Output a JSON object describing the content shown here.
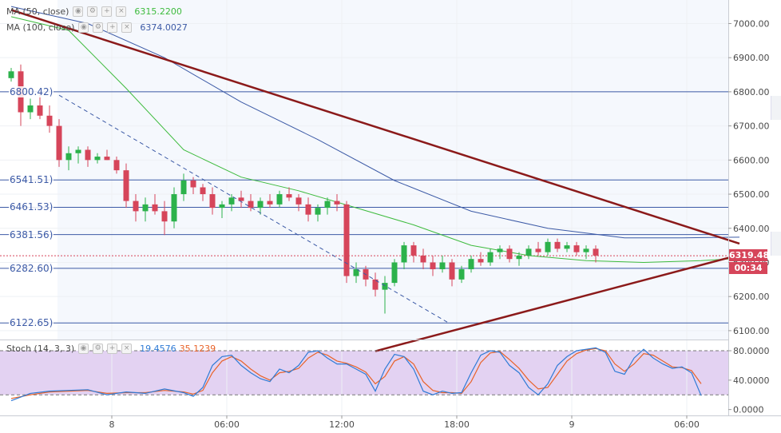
{
  "legends": [
    {
      "label": "MA (50, close)",
      "value": "6315.2200",
      "color": "#3dbb3d"
    },
    {
      "label": "MA (100, close)",
      "value": "6374.0027",
      "color": "#3c5aa6"
    }
  ],
  "stoch_legend": {
    "label": "Stoch (14, 3, 3)",
    "k": "19.4576",
    "d": "35.1239",
    "k_color": "#2f7bd6",
    "d_color": "#e8632a"
  },
  "level_labels": [
    {
      "text": "6800.42)",
      "price": 6800
    },
    {
      "text": "6541.51)",
      "price": 6541.51
    },
    {
      "text": "6461.53)",
      "price": 6461.53
    },
    {
      "text": "6381.56)",
      "price": 6381.56
    },
    {
      "text": "6282.60)",
      "price": 6282.6
    },
    {
      "text": "6122.65)",
      "price": 6122.65
    }
  ],
  "price_tag": {
    "value": "6319.48",
    "price": 6319.48,
    "countdown": "00:34",
    "color": "#d6455a"
  },
  "colors": {
    "up": "#2cb24b",
    "down": "#d6455a",
    "trend": "#8b1a1a",
    "ma50": "#3dbb3d",
    "ma100": "#3c5aa6",
    "level": "#3c5aa6",
    "stoch_bg": "#e3d2f2"
  },
  "chart_data": {
    "type": "candlestick",
    "y_axis": {
      "ticks": [
        7000,
        6900,
        6800,
        6700,
        6600,
        6500,
        6400,
        6300,
        6200,
        6100
      ],
      "labels": [
        "7000.00",
        "6900.00",
        "6800.00",
        "6700.00",
        "6600.00",
        "6500.00",
        "6400.00",
        "6300.00",
        "6200.00",
        "6100.00"
      ],
      "range": [
        6074,
        7069
      ]
    },
    "x_axis": {
      "labels": [
        "8",
        "06:00",
        "12:00",
        "18:00",
        "9",
        "06:00"
      ],
      "positions": [
        10.5,
        22.5,
        34.5,
        46.5,
        58.5,
        70.5
      ]
    },
    "levels": [
      6800,
      6541.51,
      6461.53,
      6381.56,
      6282.6,
      6122.65
    ],
    "trendlines": [
      {
        "name": "resistance",
        "from": [
          0,
          7040
        ],
        "to": [
          76,
          6355
        ],
        "style": "solid"
      },
      {
        "name": "support",
        "from": [
          38,
          6040
        ],
        "to": [
          76,
          6322
        ],
        "style": "solid"
      },
      {
        "name": "projection",
        "from": [
          5,
          6790
        ],
        "to": [
          45.5,
          6125
        ],
        "style": "dashed"
      }
    ],
    "candles": [
      [
        6840,
        6870,
        6830,
        6860
      ],
      [
        6860,
        6880,
        6700,
        6740
      ],
      [
        6740,
        6780,
        6720,
        6760
      ],
      [
        6760,
        6800,
        6720,
        6730
      ],
      [
        6730,
        6760,
        6680,
        6700
      ],
      [
        6700,
        6720,
        6580,
        6600
      ],
      [
        6600,
        6640,
        6570,
        6620
      ],
      [
        6620,
        6640,
        6590,
        6630
      ],
      [
        6630,
        6640,
        6580,
        6600
      ],
      [
        6600,
        6620,
        6590,
        6610
      ],
      [
        6610,
        6630,
        6600,
        6600
      ],
      [
        6600,
        6610,
        6560,
        6570
      ],
      [
        6570,
        6590,
        6460,
        6480
      ],
      [
        6480,
        6500,
        6420,
        6450
      ],
      [
        6450,
        6490,
        6420,
        6470
      ],
      [
        6470,
        6500,
        6440,
        6450
      ],
      [
        6450,
        6480,
        6380,
        6420
      ],
      [
        6420,
        6520,
        6400,
        6500
      ],
      [
        6500,
        6560,
        6480,
        6540
      ],
      [
        6540,
        6550,
        6500,
        6520
      ],
      [
        6520,
        6530,
        6480,
        6500
      ],
      [
        6500,
        6520,
        6440,
        6460
      ],
      [
        6460,
        6480,
        6430,
        6470
      ],
      [
        6470,
        6500,
        6450,
        6490
      ],
      [
        6490,
        6510,
        6460,
        6480
      ],
      [
        6480,
        6500,
        6450,
        6460
      ],
      [
        6460,
        6490,
        6440,
        6480
      ],
      [
        6480,
        6500,
        6460,
        6470
      ],
      [
        6470,
        6510,
        6460,
        6500
      ],
      [
        6500,
        6520,
        6480,
        6490
      ],
      [
        6490,
        6500,
        6450,
        6470
      ],
      [
        6470,
        6490,
        6420,
        6440
      ],
      [
        6440,
        6470,
        6420,
        6460
      ],
      [
        6460,
        6490,
        6440,
        6480
      ],
      [
        6480,
        6500,
        6450,
        6470
      ],
      [
        6470,
        6480,
        6240,
        6260
      ],
      [
        6260,
        6300,
        6240,
        6280
      ],
      [
        6280,
        6290,
        6230,
        6250
      ],
      [
        6250,
        6270,
        6200,
        6220
      ],
      [
        6220,
        6260,
        6150,
        6240
      ],
      [
        6240,
        6310,
        6230,
        6300
      ],
      [
        6300,
        6360,
        6280,
        6350
      ],
      [
        6350,
        6360,
        6300,
        6320
      ],
      [
        6320,
        6340,
        6280,
        6300
      ],
      [
        6300,
        6320,
        6260,
        6280
      ],
      [
        6280,
        6320,
        6270,
        6300
      ],
      [
        6300,
        6310,
        6230,
        6250
      ],
      [
        6250,
        6290,
        6240,
        6280
      ],
      [
        6280,
        6320,
        6270,
        6310
      ],
      [
        6310,
        6330,
        6290,
        6300
      ],
      [
        6300,
        6340,
        6290,
        6330
      ],
      [
        6330,
        6350,
        6310,
        6340
      ],
      [
        6340,
        6350,
        6300,
        6310
      ],
      [
        6310,
        6330,
        6290,
        6320
      ],
      [
        6320,
        6350,
        6310,
        6340
      ],
      [
        6340,
        6360,
        6320,
        6330
      ],
      [
        6330,
        6370,
        6320,
        6360
      ],
      [
        6360,
        6370,
        6330,
        6340
      ],
      [
        6340,
        6360,
        6330,
        6350
      ],
      [
        6350,
        6360,
        6320,
        6330
      ],
      [
        6330,
        6350,
        6310,
        6340
      ],
      [
        6340,
        6350,
        6300,
        6320
      ]
    ],
    "ma50": [
      [
        0,
        7020
      ],
      [
        6,
        6980
      ],
      [
        12,
        6810
      ],
      [
        18,
        6630
      ],
      [
        24,
        6550
      ],
      [
        30,
        6510
      ],
      [
        36,
        6460
      ],
      [
        42,
        6410
      ],
      [
        48,
        6350
      ],
      [
        54,
        6320
      ],
      [
        60,
        6305
      ],
      [
        66,
        6300
      ],
      [
        72,
        6305
      ],
      [
        76,
        6312
      ]
    ],
    "ma100": [
      [
        0,
        7050
      ],
      [
        8,
        7000
      ],
      [
        16,
        6900
      ],
      [
        24,
        6770
      ],
      [
        32,
        6660
      ],
      [
        40,
        6540
      ],
      [
        48,
        6450
      ],
      [
        56,
        6400
      ],
      [
        64,
        6372
      ],
      [
        70,
        6372
      ],
      [
        76,
        6374
      ]
    ],
    "stoch": {
      "ticks": [
        80,
        40,
        0
      ],
      "labels": [
        "80.0000",
        "40.0000",
        "0.0000"
      ],
      "range": [
        -8,
        92
      ],
      "bands": [
        80,
        20
      ],
      "k": [
        [
          0,
          12
        ],
        [
          2,
          22
        ],
        [
          4,
          25
        ],
        [
          6,
          26
        ],
        [
          8,
          27
        ],
        [
          10,
          20
        ],
        [
          12,
          24
        ],
        [
          14,
          22
        ],
        [
          16,
          28
        ],
        [
          18,
          23
        ],
        [
          19,
          18
        ],
        [
          20,
          30
        ],
        [
          21,
          60
        ],
        [
          22,
          72
        ],
        [
          23,
          74
        ],
        [
          24,
          60
        ],
        [
          25,
          50
        ],
        [
          26,
          42
        ],
        [
          27,
          38
        ],
        [
          28,
          55
        ],
        [
          29,
          50
        ],
        [
          30,
          60
        ],
        [
          31,
          78
        ],
        [
          32,
          80
        ],
        [
          33,
          70
        ],
        [
          34,
          62
        ],
        [
          35,
          62
        ],
        [
          36,
          55
        ],
        [
          37,
          48
        ],
        [
          38,
          25
        ],
        [
          39,
          55
        ],
        [
          40,
          75
        ],
        [
          41,
          72
        ],
        [
          42,
          55
        ],
        [
          43,
          25
        ],
        [
          44,
          20
        ],
        [
          45,
          25
        ],
        [
          46,
          22
        ],
        [
          47,
          23
        ],
        [
          48,
          50
        ],
        [
          49,
          74
        ],
        [
          50,
          80
        ],
        [
          51,
          78
        ],
        [
          52,
          60
        ],
        [
          53,
          50
        ],
        [
          54,
          30
        ],
        [
          55,
          20
        ],
        [
          56,
          35
        ],
        [
          57,
          60
        ],
        [
          58,
          72
        ],
        [
          59,
          80
        ],
        [
          60,
          82
        ],
        [
          61,
          84
        ],
        [
          62,
          78
        ],
        [
          63,
          52
        ],
        [
          64,
          48
        ],
        [
          65,
          70
        ],
        [
          66,
          82
        ],
        [
          67,
          70
        ],
        [
          68,
          62
        ],
        [
          69,
          56
        ],
        [
          70,
          58
        ],
        [
          71,
          50
        ],
        [
          72,
          19
        ]
      ],
      "d": [
        [
          0,
          15
        ],
        [
          2,
          20
        ],
        [
          4,
          24
        ],
        [
          6,
          25
        ],
        [
          8,
          26
        ],
        [
          10,
          22
        ],
        [
          12,
          23
        ],
        [
          14,
          23
        ],
        [
          16,
          26
        ],
        [
          18,
          24
        ],
        [
          19,
          21
        ],
        [
          20,
          26
        ],
        [
          21,
          50
        ],
        [
          22,
          66
        ],
        [
          23,
          72
        ],
        [
          24,
          66
        ],
        [
          25,
          55
        ],
        [
          26,
          46
        ],
        [
          27,
          40
        ],
        [
          28,
          50
        ],
        [
          29,
          52
        ],
        [
          30,
          56
        ],
        [
          31,
          70
        ],
        [
          32,
          78
        ],
        [
          33,
          74
        ],
        [
          34,
          66
        ],
        [
          35,
          63
        ],
        [
          36,
          58
        ],
        [
          37,
          51
        ],
        [
          38,
          35
        ],
        [
          39,
          45
        ],
        [
          40,
          66
        ],
        [
          41,
          72
        ],
        [
          42,
          62
        ],
        [
          43,
          38
        ],
        [
          44,
          26
        ],
        [
          45,
          23
        ],
        [
          46,
          23
        ],
        [
          47,
          22
        ],
        [
          48,
          38
        ],
        [
          49,
          64
        ],
        [
          50,
          77
        ],
        [
          51,
          79
        ],
        [
          52,
          68
        ],
        [
          53,
          56
        ],
        [
          54,
          40
        ],
        [
          55,
          28
        ],
        [
          56,
          30
        ],
        [
          57,
          48
        ],
        [
          58,
          66
        ],
        [
          59,
          76
        ],
        [
          60,
          81
        ],
        [
          61,
          83
        ],
        [
          62,
          80
        ],
        [
          63,
          62
        ],
        [
          64,
          52
        ],
        [
          65,
          62
        ],
        [
          66,
          76
        ],
        [
          67,
          74
        ],
        [
          68,
          66
        ],
        [
          69,
          58
        ],
        [
          70,
          57
        ],
        [
          71,
          53
        ],
        [
          72,
          35
        ]
      ]
    }
  }
}
